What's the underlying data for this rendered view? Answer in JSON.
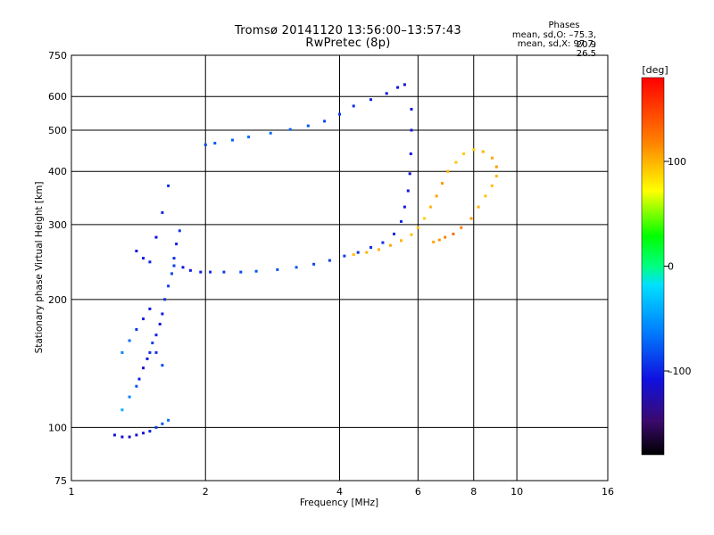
{
  "chart_data": {
    "type": "scatter",
    "title": "Tromsø 20141120 13:56:00–13:57:43",
    "subtitle": "RwPretec (8p)",
    "xlabel": "Frequency [MHz]",
    "ylabel": "Stationary phase Virtual Height [km]",
    "x_scale": "log",
    "y_scale": "log",
    "xlim": [
      1,
      16
    ],
    "ylim": [
      75,
      750
    ],
    "x_ticks": [
      1,
      2,
      4,
      6,
      8,
      10,
      16
    ],
    "x_tick_labels": [
      "1",
      "2",
      "4",
      "6",
      "8",
      "10",
      "16"
    ],
    "y_ticks": [
      75,
      100,
      200,
      300,
      400,
      500,
      600,
      750
    ],
    "y_tick_labels": [
      "75",
      "100",
      "200",
      "300",
      "400",
      "500",
      "600",
      "750"
    ],
    "grid": true,
    "colorbar": {
      "label": "[deg]",
      "range": [
        -180,
        180
      ],
      "ticks": [
        100,
        0,
        -100
      ],
      "tick_labels": [
        "100",
        "0",
        "–100"
      ]
    },
    "phases": {
      "heading": "Phases",
      "o_mode": "mean, sd,O: –75.3, 20.9",
      "x_mode": "mean, sd,X:  97.7, 26.5"
    },
    "series": [
      {
        "mode": "O",
        "x": [
          1.78,
          1.85,
          1.95,
          2.05,
          2.2,
          2.4,
          2.6,
          2.9,
          3.2,
          3.5,
          3.8,
          4.1,
          4.4,
          4.7,
          5.0,
          5.3,
          5.5,
          5.6,
          5.7,
          5.75,
          5.78,
          5.8,
          5.8,
          5.6,
          5.4,
          5.1,
          4.7,
          4.3,
          4.0,
          3.7,
          3.4,
          3.1,
          2.8,
          2.5,
          2.3,
          2.1,
          2.0
        ],
        "y": [
          238,
          234,
          232,
          232,
          232,
          232,
          233,
          235,
          238,
          242,
          247,
          253,
          258,
          265,
          272,
          285,
          305,
          330,
          360,
          395,
          440,
          500,
          560,
          640,
          630,
          610,
          590,
          570,
          545,
          525,
          512,
          502,
          492,
          482,
          474,
          466,
          462
        ],
        "phase": [
          -110,
          -105,
          -100,
          -95,
          -90,
          -85,
          -80,
          -80,
          -80,
          -85,
          -90,
          -90,
          -95,
          -95,
          -95,
          -100,
          -100,
          -105,
          -105,
          -110,
          -110,
          -105,
          -105,
          -110,
          -110,
          -105,
          -100,
          -95,
          -90,
          -85,
          -80,
          -75,
          -70,
          -70,
          -75,
          -80,
          -85
        ]
      },
      {
        "mode": "X",
        "x": [
          4.3,
          4.6,
          4.9,
          5.2,
          5.5,
          5.8,
          6.0,
          6.2,
          6.4,
          6.6,
          6.8,
          7.0,
          7.3,
          7.6,
          8.0,
          8.4,
          8.8,
          9.0,
          9.0,
          8.8,
          8.5,
          8.2,
          7.9,
          7.5,
          7.2,
          6.9,
          6.7,
          6.5
        ],
        "y": [
          255,
          258,
          262,
          268,
          275,
          284,
          295,
          310,
          330,
          350,
          375,
          400,
          420,
          440,
          450,
          445,
          430,
          410,
          390,
          370,
          350,
          330,
          310,
          295,
          285,
          280,
          276,
          273
        ],
        "phase": [
          95,
          100,
          100,
          105,
          100,
          95,
          95,
          90,
          100,
          105,
          110,
          100,
          95,
          90,
          90,
          100,
          105,
          110,
          100,
          95,
          95,
          100,
          110,
          120,
          130,
          120,
          110,
          105
        ]
      },
      {
        "mode": "spread",
        "x": [
          1.3,
          1.35,
          1.4,
          1.42,
          1.45,
          1.48,
          1.5,
          1.52,
          1.55,
          1.58,
          1.6,
          1.62,
          1.65,
          1.68,
          1.7,
          1.72,
          1.75,
          1.4,
          1.45,
          1.5,
          1.55,
          1.6,
          1.65,
          1.7,
          1.3,
          1.35,
          1.4,
          1.45,
          1.5,
          1.55,
          1.6,
          1.25,
          1.3,
          1.35,
          1.4,
          1.45,
          1.5,
          1.55,
          1.6,
          1.65
        ],
        "y": [
          110,
          118,
          125,
          130,
          138,
          145,
          150,
          158,
          165,
          175,
          185,
          200,
          215,
          230,
          250,
          270,
          290,
          260,
          250,
          245,
          280,
          320,
          370,
          240,
          150,
          160,
          170,
          180,
          190,
          150,
          140,
          96,
          95,
          95,
          96,
          97,
          98,
          100,
          102,
          104
        ],
        "phase": [
          -40,
          -60,
          -80,
          -100,
          -110,
          -105,
          -95,
          -90,
          -100,
          -110,
          -105,
          -95,
          -90,
          -85,
          -95,
          -100,
          -90,
          -110,
          -105,
          -100,
          -110,
          -100,
          -95,
          -90,
          -60,
          -70,
          -90,
          -100,
          -105,
          -95,
          -85,
          -110,
          -115,
          -120,
          -115,
          -110,
          -100,
          -90,
          -80,
          -70
        ]
      }
    ],
    "colors": {
      "grid": "#000000",
      "background": "#ffffff"
    }
  }
}
